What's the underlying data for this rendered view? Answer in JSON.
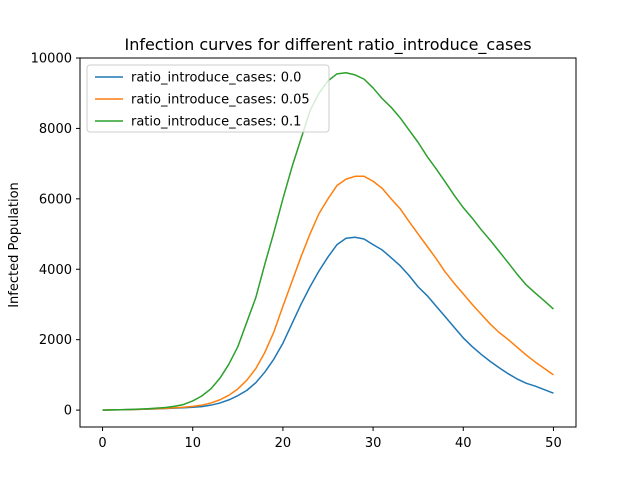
{
  "chart_data": {
    "type": "line",
    "title": "Infection curves for different ratio_introduce_cases",
    "xlabel": "",
    "ylabel": "Infected Population",
    "xlim": [
      -2.5,
      52.5
    ],
    "ylim": [
      -480,
      10000
    ],
    "xticks": [
      0,
      10,
      20,
      30,
      40,
      50
    ],
    "yticks": [
      0,
      2000,
      4000,
      6000,
      8000,
      10000
    ],
    "grid": false,
    "legend_position": "top-left",
    "x": [
      0,
      1,
      2,
      3,
      4,
      5,
      6,
      7,
      8,
      9,
      10,
      11,
      12,
      13,
      14,
      15,
      16,
      17,
      18,
      19,
      20,
      21,
      22,
      23,
      24,
      25,
      26,
      27,
      28,
      29,
      30,
      31,
      32,
      33,
      34,
      35,
      36,
      37,
      38,
      39,
      40,
      41,
      42,
      43,
      44,
      45,
      46,
      47,
      48,
      49,
      50
    ],
    "series": [
      {
        "name": "ratio_introduce_cases: 0.0",
        "color": "#1f77b4",
        "values": [
          0,
          5,
          10,
          15,
          20,
          28,
          35,
          45,
          55,
          65,
          80,
          100,
          140,
          200,
          290,
          410,
          560,
          780,
          1080,
          1450,
          1900,
          2450,
          3000,
          3500,
          3950,
          4350,
          4700,
          4880,
          4910,
          4860,
          4700,
          4550,
          4330,
          4100,
          3820,
          3500,
          3250,
          2950,
          2650,
          2350,
          2050,
          1800,
          1580,
          1380,
          1200,
          1030,
          880,
          760,
          680,
          580,
          480
        ]
      },
      {
        "name": "ratio_introduce_cases: 0.05",
        "color": "#ff7f0e",
        "values": [
          0,
          5,
          10,
          15,
          20,
          30,
          40,
          50,
          65,
          80,
          105,
          140,
          200,
          290,
          420,
          600,
          850,
          1180,
          1640,
          2220,
          2950,
          3650,
          4350,
          5000,
          5580,
          6000,
          6380,
          6560,
          6640,
          6640,
          6500,
          6300,
          6000,
          5720,
          5350,
          5000,
          4650,
          4300,
          3920,
          3600,
          3300,
          3000,
          2720,
          2440,
          2200,
          2000,
          1780,
          1560,
          1360,
          1180,
          1000
        ]
      },
      {
        "name": "ratio_introduce_cases: 0.1",
        "color": "#2ca02c",
        "values": [
          0,
          5,
          10,
          18,
          28,
          40,
          55,
          75,
          110,
          160,
          260,
          400,
          600,
          900,
          1300,
          1800,
          2500,
          3200,
          4150,
          5050,
          6000,
          6900,
          7700,
          8500,
          9000,
          9350,
          9550,
          9580,
          9520,
          9400,
          9150,
          8850,
          8600,
          8300,
          7950,
          7600,
          7200,
          6850,
          6480,
          6100,
          5750,
          5450,
          5120,
          4820,
          4500,
          4180,
          3850,
          3550,
          3320,
          3100,
          2870
        ]
      }
    ]
  }
}
